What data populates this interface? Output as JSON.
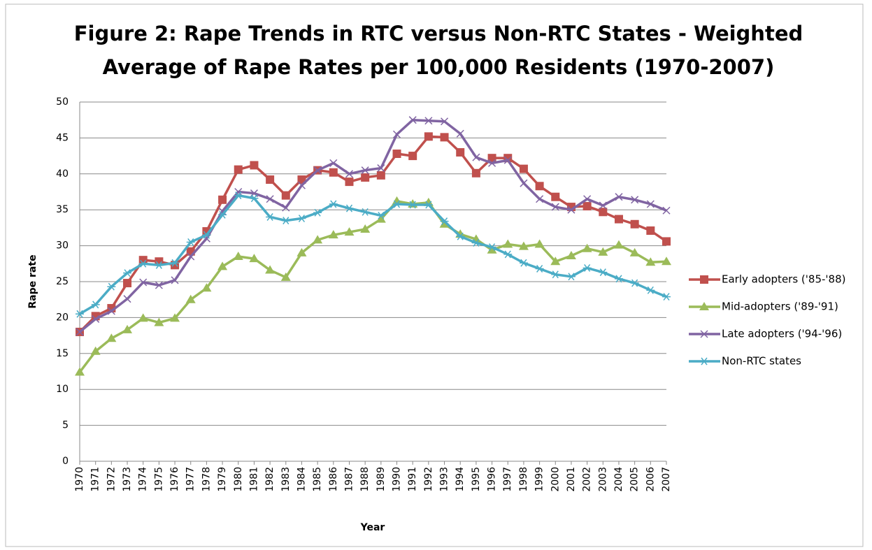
{
  "chart_data": {
    "type": "line",
    "title": [
      "Figure 2: Rape Trends in RTC versus Non-RTC States - Weighted",
      "Average of Rape Rates per 100,000 Residents (1970-2007)"
    ],
    "x_label": "Year",
    "y_label": "Rape rate",
    "categories": [
      "1970",
      "1971",
      "1972",
      "1973",
      "1974",
      "1975",
      "1976",
      "1977",
      "1978",
      "1979",
      "1980",
      "1981",
      "1982",
      "1983",
      "1984",
      "1985",
      "1986",
      "1987",
      "1988",
      "1989",
      "1990",
      "1991",
      "1992",
      "1993",
      "1994",
      "1995",
      "1996",
      "1997",
      "1998",
      "1999",
      "2000",
      "2001",
      "2002",
      "2003",
      "2004",
      "2005",
      "2006",
      "2007"
    ],
    "ylim": [
      0,
      50
    ],
    "yticks": [
      0,
      5,
      10,
      15,
      20,
      25,
      30,
      35,
      40,
      45,
      50
    ],
    "grid": true,
    "legend": "right",
    "series": [
      {
        "name": "Early adopters ('85-'88)",
        "color": "#c0504d",
        "marker": "square",
        "values": [
          18,
          20.2,
          21.3,
          24.8,
          28,
          27.8,
          27.3,
          29.2,
          32,
          36.4,
          40.6,
          41.2,
          39.2,
          37,
          39.2,
          40.5,
          40.2,
          38.9,
          39.5,
          39.8,
          42.8,
          42.5,
          45.2,
          45.1,
          43,
          40.1,
          42.2,
          42.2,
          40.7,
          38.3,
          36.8,
          35.4,
          35.5,
          34.7,
          33.7,
          33,
          32.1,
          30.6
        ]
      },
      {
        "name": "Mid-adopters ('89-'91)",
        "color": "#9bbb59",
        "marker": "triangle",
        "values": [
          12.4,
          15.3,
          17.1,
          18.3,
          19.9,
          19.3,
          19.9,
          22.5,
          24.1,
          27.1,
          28.5,
          28.2,
          26.6,
          25.6,
          29,
          30.8,
          31.5,
          31.9,
          32.3,
          33.7,
          36.2,
          35.8,
          36,
          33,
          31.6,
          30.9,
          29.4,
          30.2,
          29.9,
          30.2,
          27.8,
          28.6,
          29.6,
          29.1,
          30.1,
          29,
          27.7,
          27.8
        ]
      },
      {
        "name": "Late adopters ('94-'96)",
        "color": "#8064a2",
        "marker": "x",
        "values": [
          18,
          19.8,
          20.9,
          22.6,
          24.9,
          24.5,
          25.2,
          28.5,
          31,
          34.8,
          37.5,
          37.3,
          36.5,
          35.3,
          38.4,
          40.5,
          41.5,
          40,
          40.5,
          40.8,
          45.5,
          47.5,
          47.4,
          47.3,
          45.6,
          42.3,
          41.5,
          41.9,
          38.7,
          36.5,
          35.4,
          35,
          36.5,
          35.6,
          36.8,
          36.4,
          35.8,
          34.9
        ]
      },
      {
        "name": "Non-RTC states",
        "color": "#4bacc6",
        "marker": "asterisk",
        "values": [
          20.5,
          21.8,
          24.3,
          26.2,
          27.5,
          27.3,
          27.6,
          30.5,
          31.5,
          34.3,
          37,
          36.6,
          34,
          33.5,
          33.8,
          34.6,
          35.8,
          35.2,
          34.7,
          34.2,
          35.8,
          35.7,
          35.7,
          33.4,
          31.3,
          30.4,
          29.8,
          28.8,
          27.6,
          26.8,
          26,
          25.7,
          26.9,
          26.3,
          25.4,
          24.8,
          23.8,
          22.9
        ]
      }
    ]
  }
}
